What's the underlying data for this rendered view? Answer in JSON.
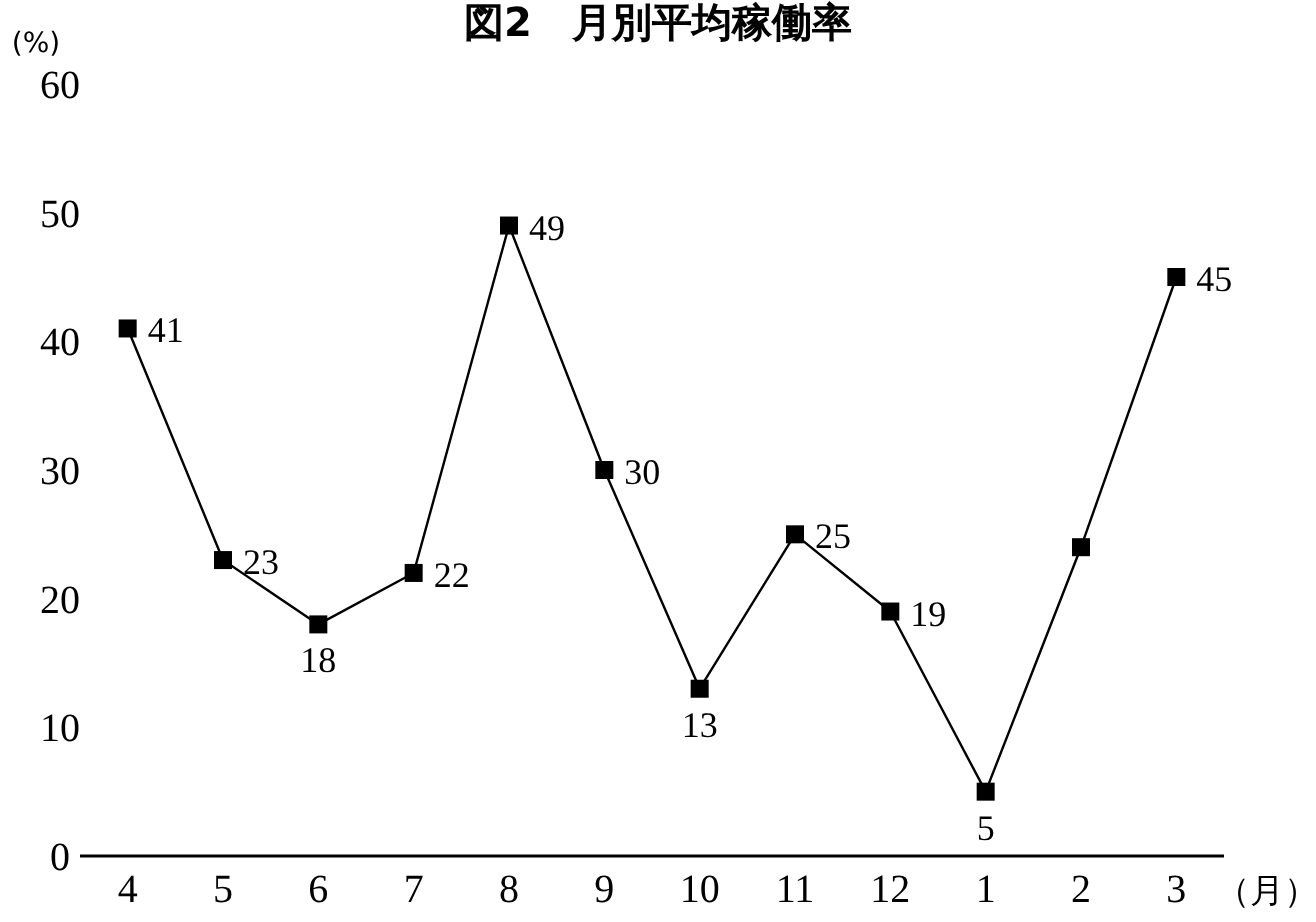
{
  "chart_data": {
    "type": "line",
    "title": "図2　月別平均稼働率",
    "ylabel": "(%)",
    "xlabel": "（月）",
    "categories": [
      "4",
      "5",
      "6",
      "7",
      "8",
      "9",
      "10",
      "11",
      "12",
      "1",
      "2",
      "3"
    ],
    "series": [
      {
        "color": "#000000",
        "values": [
          41,
          23,
          18,
          22,
          49,
          30,
          13,
          25,
          19,
          5,
          24,
          45
        ],
        "value_labels": [
          "41",
          "23",
          "18",
          "22",
          "49",
          "30",
          "13",
          "25",
          "19",
          "5",
          null,
          "45"
        ]
      }
    ],
    "ylim": [
      0,
      60
    ],
    "yticks": [
      0,
      10,
      20,
      30,
      40,
      50,
      60
    ],
    "marker": "square",
    "line_style": "solid",
    "grid": false
  }
}
